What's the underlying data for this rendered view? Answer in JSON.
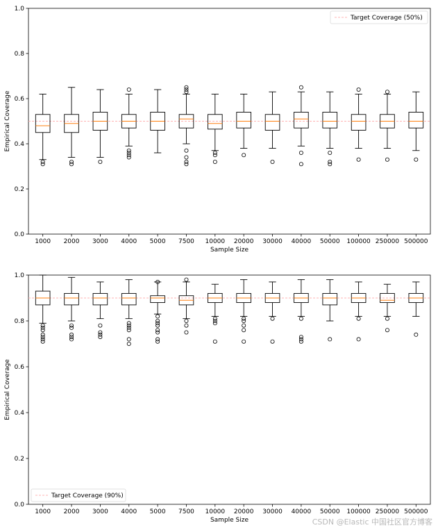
{
  "chart_data": [
    {
      "type": "boxplot",
      "xlabel": "Sample Size",
      "ylabel": "Empirical Coverage",
      "ylim": [
        0,
        1
      ],
      "yticks": [
        "0.0",
        "0.2",
        "0.4",
        "0.6",
        "0.8",
        "1.0"
      ],
      "target": 0.5,
      "legend": {
        "label": "Target Coverage (50%)",
        "placement": "top-right"
      },
      "categories": [
        "1000",
        "2000",
        "3000",
        "4000",
        "5000",
        "7500",
        "10000",
        "20000",
        "30000",
        "40000",
        "50000",
        "100000",
        "250000",
        "500000"
      ],
      "boxes": [
        {
          "whislo": 0.33,
          "q1": 0.45,
          "med": 0.48,
          "q3": 0.53,
          "whishi": 0.62,
          "fliers": [
            0.31,
            0.32
          ]
        },
        {
          "whislo": 0.34,
          "q1": 0.45,
          "med": 0.49,
          "q3": 0.53,
          "whishi": 0.65,
          "fliers": [
            0.31,
            0.32
          ]
        },
        {
          "whislo": 0.34,
          "q1": 0.46,
          "med": 0.5,
          "q3": 0.54,
          "whishi": 0.64,
          "fliers": [
            0.32
          ]
        },
        {
          "whislo": 0.39,
          "q1": 0.47,
          "med": 0.5,
          "q3": 0.53,
          "whishi": 0.62,
          "fliers": [
            0.34,
            0.35,
            0.36,
            0.37,
            0.64
          ]
        },
        {
          "whislo": 0.36,
          "q1": 0.46,
          "med": 0.5,
          "q3": 0.54,
          "whishi": 0.64,
          "fliers": []
        },
        {
          "whislo": 0.4,
          "q1": 0.47,
          "med": 0.51,
          "q3": 0.53,
          "whishi": 0.62,
          "fliers": [
            0.31,
            0.32,
            0.34,
            0.37,
            0.63,
            0.64,
            0.65
          ]
        },
        {
          "whislo": 0.37,
          "q1": 0.465,
          "med": 0.49,
          "q3": 0.53,
          "whishi": 0.62,
          "fliers": [
            0.32,
            0.35,
            0.36
          ]
        },
        {
          "whislo": 0.38,
          "q1": 0.47,
          "med": 0.5,
          "q3": 0.54,
          "whishi": 0.62,
          "fliers": [
            0.35
          ]
        },
        {
          "whislo": 0.38,
          "q1": 0.46,
          "med": 0.5,
          "q3": 0.53,
          "whishi": 0.63,
          "fliers": [
            0.32
          ]
        },
        {
          "whislo": 0.39,
          "q1": 0.47,
          "med": 0.51,
          "q3": 0.54,
          "whishi": 0.63,
          "fliers": [
            0.31,
            0.36,
            0.65
          ]
        },
        {
          "whislo": 0.38,
          "q1": 0.47,
          "med": 0.5,
          "q3": 0.54,
          "whishi": 0.63,
          "fliers": [
            0.31,
            0.32,
            0.36
          ]
        },
        {
          "whislo": 0.38,
          "q1": 0.46,
          "med": 0.5,
          "q3": 0.53,
          "whishi": 0.62,
          "fliers": [
            0.33,
            0.64
          ]
        },
        {
          "whislo": 0.38,
          "q1": 0.47,
          "med": 0.5,
          "q3": 0.53,
          "whishi": 0.62,
          "fliers": [
            0.33,
            0.63
          ]
        },
        {
          "whislo": 0.37,
          "q1": 0.47,
          "med": 0.5,
          "q3": 0.54,
          "whishi": 0.63,
          "fliers": [
            0.33
          ]
        }
      ]
    },
    {
      "type": "boxplot",
      "xlabel": "Sample Size",
      "ylabel": "Empirical Coverage",
      "ylim": [
        0,
        1
      ],
      "yticks": [
        "0.0",
        "0.2",
        "0.4",
        "0.6",
        "0.8",
        "1.0"
      ],
      "target": 0.9,
      "legend": {
        "label": "Target Coverage (90%)",
        "placement": "bottom-left"
      },
      "categories": [
        "1000",
        "2000",
        "3000",
        "4000",
        "5000",
        "7500",
        "10000",
        "20000",
        "30000",
        "40000",
        "50000",
        "100000",
        "250000",
        "500000"
      ],
      "boxes": [
        {
          "whislo": 0.79,
          "q1": 0.87,
          "med": 0.9,
          "q3": 0.93,
          "whishi": 1.0,
          "fliers": [
            0.71,
            0.72,
            0.73,
            0.74,
            0.76,
            0.77,
            0.78
          ]
        },
        {
          "whislo": 0.8,
          "q1": 0.87,
          "med": 0.9,
          "q3": 0.92,
          "whishi": 0.99,
          "fliers": [
            0.72,
            0.73,
            0.74,
            0.77,
            0.78
          ]
        },
        {
          "whislo": 0.81,
          "q1": 0.87,
          "med": 0.9,
          "q3": 0.92,
          "whishi": 0.97,
          "fliers": [
            0.73,
            0.74,
            0.75,
            0.78
          ]
        },
        {
          "whislo": 0.81,
          "q1": 0.87,
          "med": 0.9,
          "q3": 0.92,
          "whishi": 0.98,
          "fliers": [
            0.7,
            0.72,
            0.76,
            0.77,
            0.78,
            0.79
          ]
        },
        {
          "whislo": 0.83,
          "q1": 0.88,
          "med": 0.9,
          "q3": 0.91,
          "whishi": 0.97,
          "fliers": [
            0.71,
            0.72,
            0.75,
            0.76,
            0.78,
            0.79,
            0.8,
            0.82,
            0.97
          ]
        },
        {
          "whislo": 0.81,
          "q1": 0.87,
          "med": 0.89,
          "q3": 0.91,
          "whishi": 0.97,
          "fliers": [
            0.75,
            0.78,
            0.8,
            0.98
          ]
        },
        {
          "whislo": 0.82,
          "q1": 0.88,
          "med": 0.9,
          "q3": 0.92,
          "whishi": 0.96,
          "fliers": [
            0.71,
            0.79,
            0.8,
            0.81
          ]
        },
        {
          "whislo": 0.82,
          "q1": 0.88,
          "med": 0.9,
          "q3": 0.92,
          "whishi": 0.98,
          "fliers": [
            0.71,
            0.76,
            0.78,
            0.8,
            0.81
          ]
        },
        {
          "whislo": 0.82,
          "q1": 0.88,
          "med": 0.9,
          "q3": 0.92,
          "whishi": 0.97,
          "fliers": [
            0.71,
            0.81
          ]
        },
        {
          "whislo": 0.82,
          "q1": 0.88,
          "med": 0.9,
          "q3": 0.92,
          "whishi": 0.98,
          "fliers": [
            0.71,
            0.72,
            0.73,
            0.81
          ]
        },
        {
          "whislo": 0.8,
          "q1": 0.87,
          "med": 0.9,
          "q3": 0.92,
          "whishi": 0.98,
          "fliers": [
            0.72
          ]
        },
        {
          "whislo": 0.82,
          "q1": 0.88,
          "med": 0.9,
          "q3": 0.92,
          "whishi": 0.97,
          "fliers": [
            0.72,
            0.81
          ]
        },
        {
          "whislo": 0.82,
          "q1": 0.88,
          "med": 0.89,
          "q3": 0.92,
          "whishi": 0.96,
          "fliers": [
            0.76,
            0.81
          ]
        },
        {
          "whislo": 0.82,
          "q1": 0.88,
          "med": 0.9,
          "q3": 0.92,
          "whishi": 0.97,
          "fliers": [
            0.74
          ]
        }
      ]
    }
  ],
  "colors": {
    "box": "#000000",
    "median": "#ff7f0e",
    "target": "#ffb3b3",
    "legend_border": "#d9d9d9"
  },
  "watermark": "CSDN @Elastic 中国社区官方博客"
}
